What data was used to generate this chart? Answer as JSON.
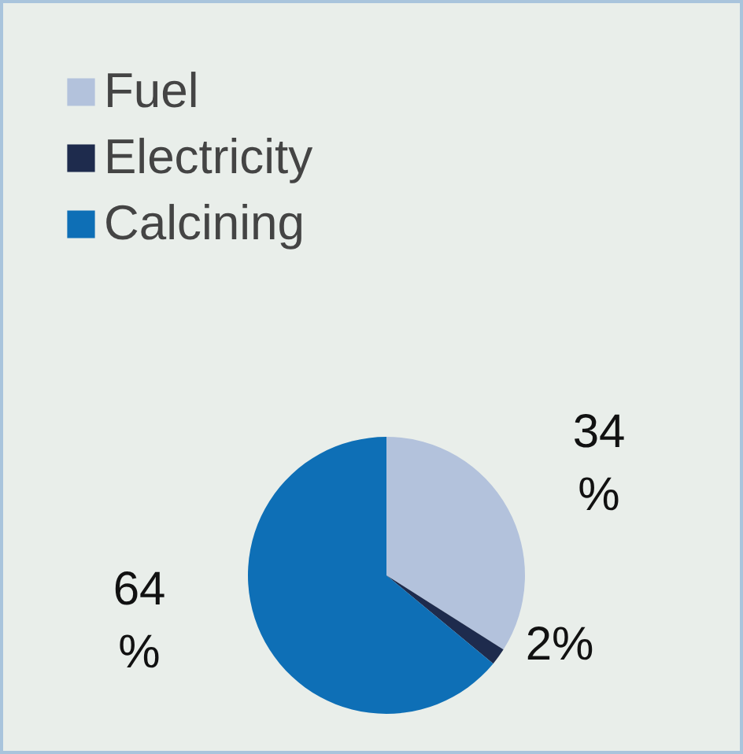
{
  "chart_data": {
    "type": "pie",
    "categories": [
      "Fuel",
      "Electricity",
      "Calcining"
    ],
    "values": [
      34,
      2,
      64
    ],
    "colors": [
      "#b3c2dc",
      "#1e2b4d",
      "#0e6fb6"
    ],
    "value_labels": [
      "34\n%",
      "2%",
      "64\n%"
    ],
    "legend": "top left"
  }
}
